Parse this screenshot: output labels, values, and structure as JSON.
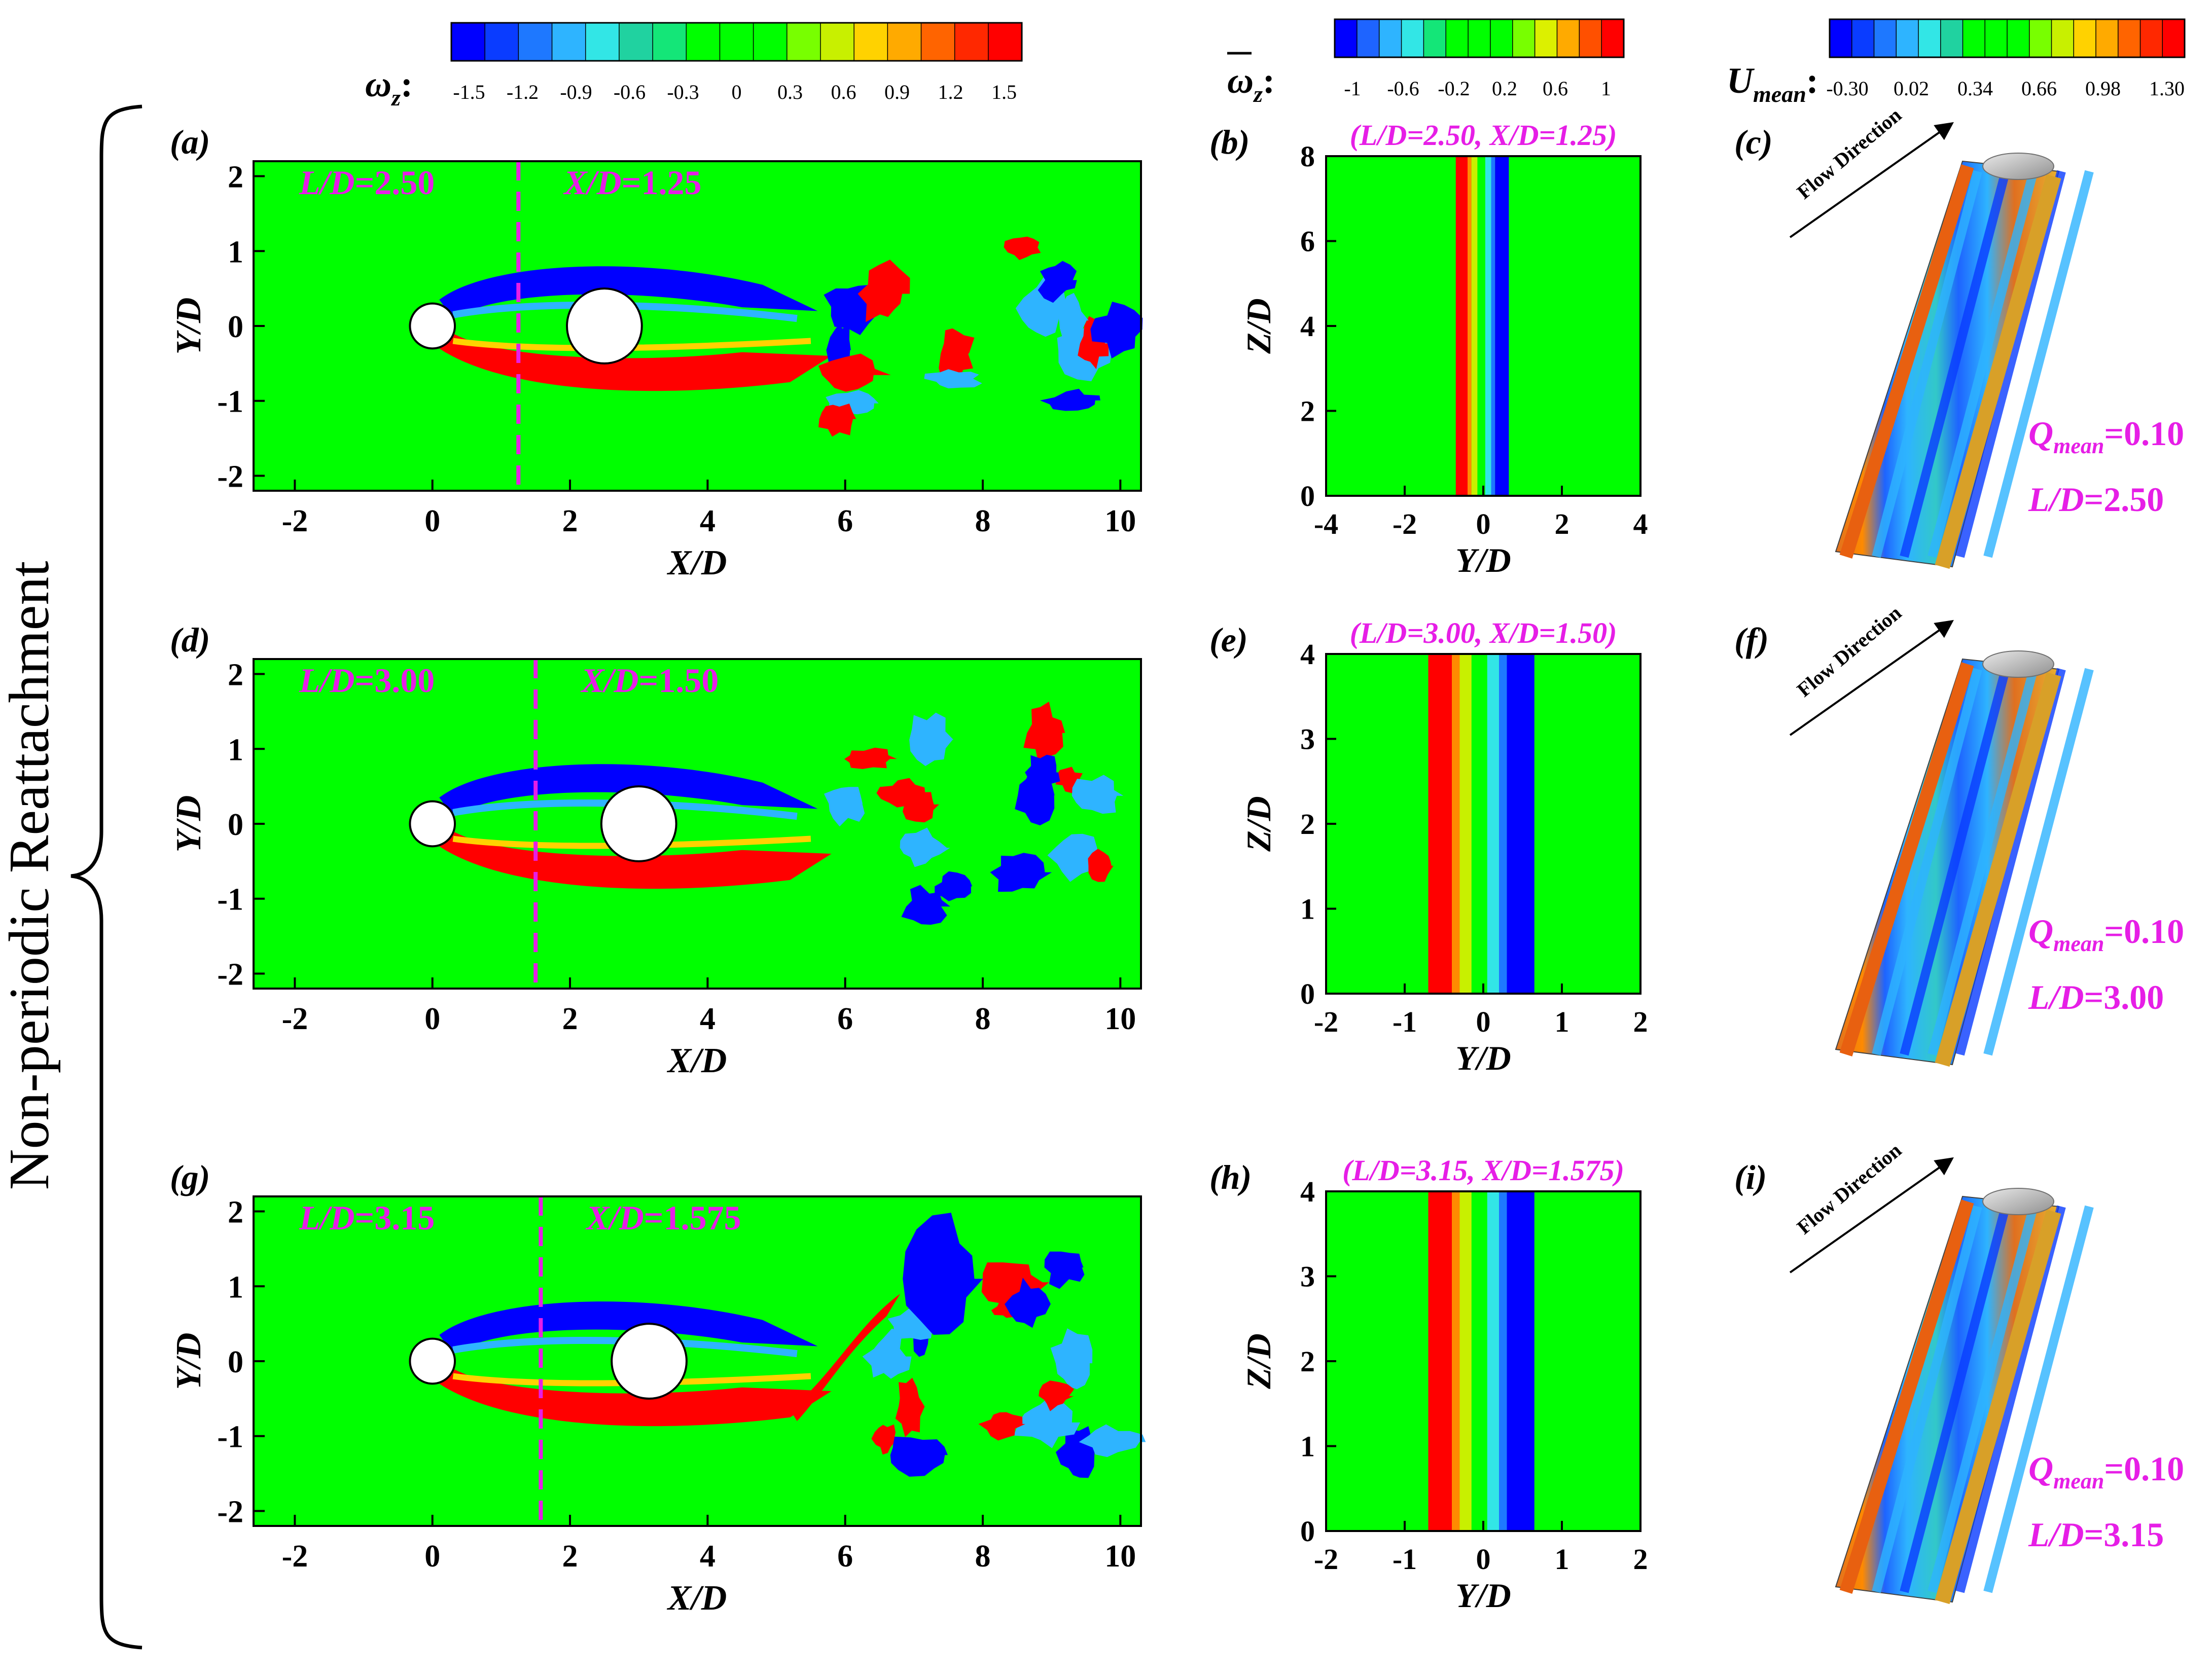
{
  "side_label": "Non-periodic Reattachment",
  "colorbars": [
    {
      "label_main": "ω",
      "label_sub": "z",
      "label_colon": ":",
      "colors": [
        "#0000ff",
        "#0a3cff",
        "#1e78ff",
        "#2eb4ff",
        "#32e6e6",
        "#20d2a0",
        "#14e678",
        "#00ff00",
        "#00ff00",
        "#00ff00",
        "#78ff00",
        "#c8f000",
        "#ffd200",
        "#ffaa00",
        "#ff6400",
        "#ff2800",
        "#ff0000"
      ],
      "ticks": [
        "-1.5",
        "-1.2",
        "-0.9",
        "-0.6",
        "-0.3",
        "0",
        "0.3",
        "0.6",
        "0.9",
        "1.2",
        "1.5"
      ]
    },
    {
      "label_main": "ω",
      "label_sub": "z",
      "label_colon": ":",
      "colors": [
        "#0000ff",
        "#1e64ff",
        "#2eb4ff",
        "#32e6e6",
        "#14e678",
        "#00ff00",
        "#00ff00",
        "#00ff00",
        "#78ff00",
        "#dcf000",
        "#ffaa00",
        "#ff5000",
        "#ff0000"
      ],
      "ticks": [
        "-1",
        "-0.6",
        "-0.2",
        "0.2",
        "0.6",
        "1"
      ]
    },
    {
      "label_main": "U",
      "label_sub": "mean",
      "label_colon": ":",
      "colors": [
        "#0000ff",
        "#0a3cff",
        "#1e78ff",
        "#2eb4ff",
        "#32e6e6",
        "#20d2a0",
        "#00ff00",
        "#00ff00",
        "#00ff00",
        "#78ff00",
        "#c8f000",
        "#ffd200",
        "#ffaa00",
        "#ff6400",
        "#ff2800",
        "#ff0000"
      ],
      "ticks": [
        "-0.30",
        "0.02",
        "0.34",
        "0.66",
        "0.98",
        "1.30"
      ]
    }
  ],
  "rows": [
    {
      "wake": {
        "tag": "(a)",
        "ld_label": "L/D",
        "ld_value": "=2.50",
        "xd_label": "X/D",
        "xd_value": "=1.25",
        "cut_x": 1.25,
        "second_cyl_x": 2.5,
        "xticks": [
          "-2",
          "0",
          "2",
          "4",
          "6",
          "8",
          "10"
        ],
        "yticks": [
          "2",
          "1",
          "0",
          "-1",
          "-2"
        ],
        "xlabel": "X/D",
        "ylabel": "Y/D"
      },
      "slice": {
        "tag": "(b)",
        "title": "(L/D=2.50, X/D=1.25)",
        "yticks": [
          "8",
          "6",
          "4",
          "2",
          "0"
        ],
        "xticks": [
          "-4",
          "-2",
          "0",
          "2",
          "4"
        ],
        "xlim": [
          -4,
          4
        ],
        "ylim": [
          0,
          8
        ],
        "xlabel": "Y/D",
        "ylabel": "Z/D"
      },
      "iso": {
        "tag": "(c)",
        "flow_label": "Flow Direction",
        "q_label": "Q",
        "q_sub": "mean",
        "q_value": "=0.10",
        "ld_label": "L/D",
        "ld_value": "=2.50"
      }
    },
    {
      "wake": {
        "tag": "(d)",
        "ld_label": "L/D",
        "ld_value": "=3.00",
        "xd_label": "X/D",
        "xd_value": "=1.50",
        "cut_x": 1.5,
        "second_cyl_x": 3.0,
        "xticks": [
          "-2",
          "0",
          "2",
          "4",
          "6",
          "8",
          "10"
        ],
        "yticks": [
          "2",
          "1",
          "0",
          "-1",
          "-2"
        ],
        "xlabel": "X/D",
        "ylabel": "Y/D"
      },
      "slice": {
        "tag": "(e)",
        "title": "(L/D=3.00, X/D=1.50)",
        "yticks": [
          "4",
          "3",
          "2",
          "1",
          "0"
        ],
        "xticks": [
          "-2",
          "-1",
          "0",
          "1",
          "2"
        ],
        "xlim": [
          -2,
          2
        ],
        "ylim": [
          0,
          4
        ],
        "xlabel": "Y/D",
        "ylabel": "Z/D"
      },
      "iso": {
        "tag": "(f)",
        "flow_label": "Flow Direction",
        "q_label": "Q",
        "q_sub": "mean",
        "q_value": "=0.10",
        "ld_label": "L/D",
        "ld_value": "=3.00"
      }
    },
    {
      "wake": {
        "tag": "(g)",
        "ld_label": "L/D",
        "ld_value": "=3.15",
        "xd_label": "X/D",
        "xd_value": "=1.575",
        "cut_x": 1.575,
        "second_cyl_x": 3.15,
        "xticks": [
          "-2",
          "0",
          "2",
          "4",
          "6",
          "8",
          "10"
        ],
        "yticks": [
          "2",
          "1",
          "0",
          "-1",
          "-2"
        ],
        "xlabel": "X/D",
        "ylabel": "Y/D"
      },
      "slice": {
        "tag": "(h)",
        "title": "(L/D=3.15, X/D=1.575)",
        "yticks": [
          "4",
          "3",
          "2",
          "1",
          "0"
        ],
        "xticks": [
          "-2",
          "-1",
          "0",
          "1",
          "2"
        ],
        "xlim": [
          -2,
          2
        ],
        "ylim": [
          0,
          4
        ],
        "xlabel": "Y/D",
        "ylabel": "Z/D"
      },
      "iso": {
        "tag": "(i)",
        "flow_label": "Flow Direction",
        "q_label": "Q",
        "q_sub": "mean",
        "q_value": "=0.10",
        "ld_label": "L/D",
        "ld_value": "=3.15"
      }
    }
  ],
  "colors": {
    "field_green": "#00ff00",
    "magenta": "#e61ee6",
    "red": "#ff0000",
    "blue": "#0000ff",
    "orange": "#e8a030",
    "gold": "#d8a028"
  }
}
